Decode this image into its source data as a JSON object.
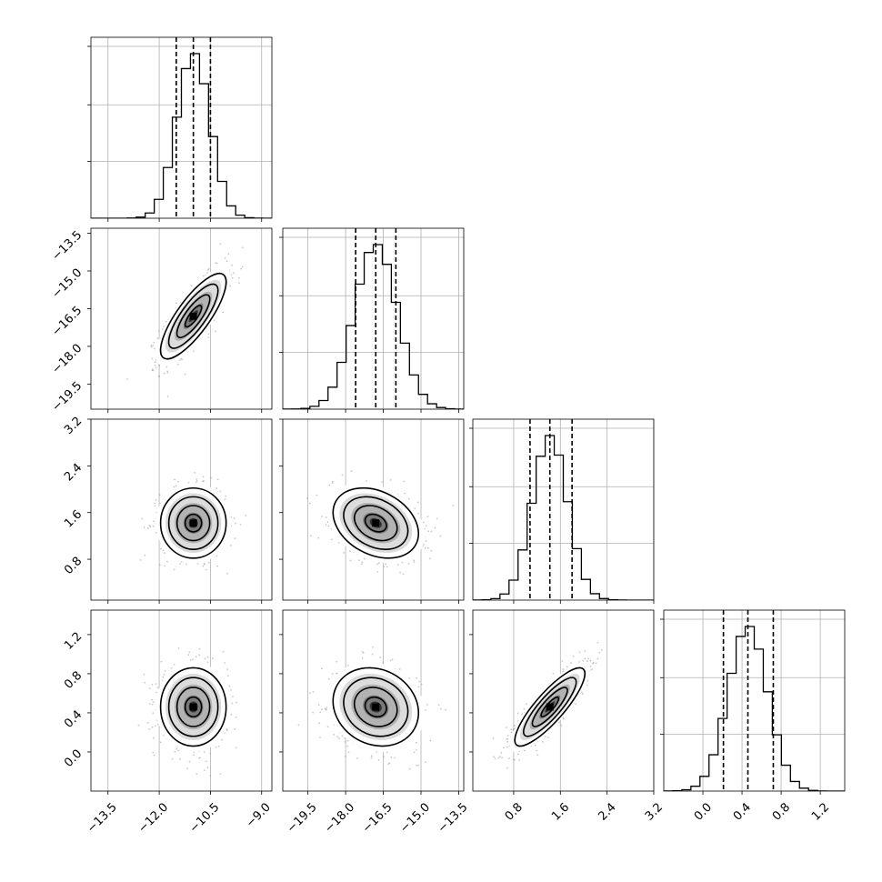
{
  "chart_data": {
    "type": "corner",
    "parameters": [
      {
        "id": "p0",
        "mean": -11.0,
        "sd": 0.48,
        "quantiles": [
          -11.5,
          -11.0,
          -10.5
        ],
        "range": [
          -14.0,
          -8.7
        ],
        "ticks": [
          "-13.5",
          "-12.0",
          "-10.5",
          "-9.0"
        ],
        "tick_values": [
          -13.5,
          -12.0,
          -10.5,
          -9.0
        ]
      },
      {
        "id": "p1",
        "mean": -16.8,
        "sd": 0.85,
        "quantiles": [
          -17.6,
          -16.8,
          -16.0
        ],
        "range": [
          -20.5,
          -13.3
        ],
        "ticks": [
          "-19.5",
          "-18.0",
          "-16.5",
          "-15.0",
          "-13.5"
        ],
        "tick_values": [
          -19.5,
          -18.0,
          -16.5,
          -15.0,
          -13.5
        ]
      },
      {
        "id": "p2",
        "mean": 1.42,
        "sd": 0.3,
        "quantiles": [
          1.08,
          1.42,
          1.8
        ],
        "range": [
          0.1,
          3.2
        ],
        "ticks": [
          "0.8",
          "1.6",
          "2.4",
          "3.2"
        ],
        "tick_values": [
          0.8,
          1.6,
          2.4,
          3.2
        ]
      },
      {
        "id": "p3",
        "mean": 0.46,
        "sd": 0.2,
        "quantiles": [
          0.21,
          0.46,
          0.72
        ],
        "range": [
          -0.4,
          1.45
        ],
        "ticks": [
          "0.0",
          "0.4",
          "0.8",
          "1.2"
        ],
        "tick_values": [
          0.0,
          0.4,
          0.8,
          1.2
        ]
      }
    ],
    "correlations": {
      "p0-p1": 0.8,
      "p0-p2": 0.0,
      "p0-p3": 0.0,
      "p1-p2": -0.3,
      "p1-p3": -0.15,
      "p2-p3": 0.85
    },
    "histogram_bins": 20,
    "contour_levels_sigma": [
      0.5,
      1.0,
      1.5,
      2.0
    ],
    "grid": true,
    "colors": {
      "points": "#9a9a9a",
      "lines": "#000000",
      "grid": "#b0b0b0"
    }
  }
}
